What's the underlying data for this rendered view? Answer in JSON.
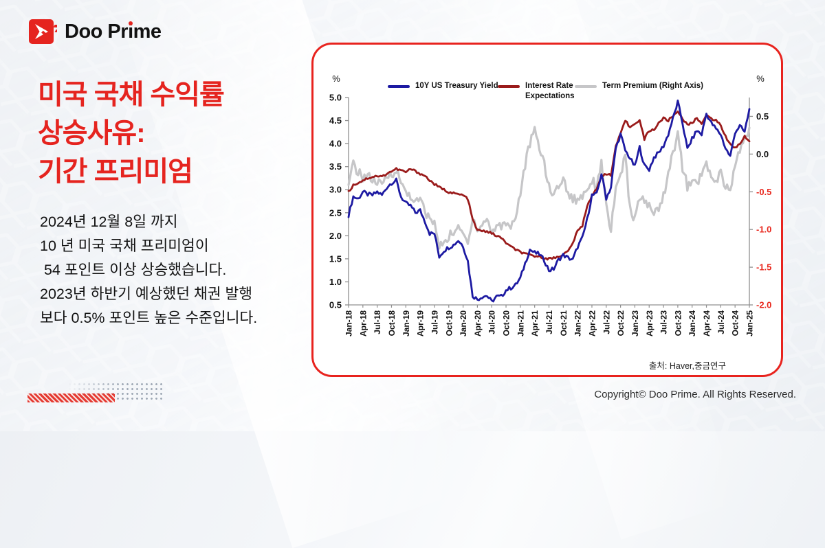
{
  "logo": {
    "brand_left": "Doo Pr",
    "brand_i": "i",
    "brand_right": "me"
  },
  "headline": {
    "lines": [
      "미국 국채 수익률",
      "상승사유:",
      "기간 프리미엄"
    ],
    "color": "#e5241f"
  },
  "body": {
    "text": "2024년 12월 8일 까지\n10 년 미국 국채 프리미엄이\n 54 포인트 이상 상승했습니다.\n2023년 하반기 예상했던 채권 발행\n보다 0.5% 포인트 높은 수준입니다."
  },
  "footer": {
    "copyright": "Copyright© Doo Prime. All Rights Reserved."
  },
  "chart_data": {
    "type": "line",
    "source": "출처:  Haver,중금연구",
    "x_start": "Jan-18",
    "x_end": "Jan-25",
    "x_labels": [
      "Jan-18",
      "Apr-18",
      "Jul-18",
      "Oct-18",
      "Jan-19",
      "Apr-19",
      "Jul-19",
      "Oct-19",
      "Jan-20",
      "Apr-20",
      "Jul-20",
      "Oct-20",
      "Jan-21",
      "Apr-21",
      "Jul-21",
      "Oct-21",
      "Jan-22",
      "Apr-22",
      "Jul-22",
      "Oct-22",
      "Jan-23",
      "Apr-23",
      "Jul-23",
      "Oct-23",
      "Jan-24",
      "Apr-24",
      "Jul-24",
      "Oct-24",
      "Jan-25"
    ],
    "left_axis": {
      "label": "%",
      "min": 0.5,
      "max": 5.0,
      "ticks": [
        5.0,
        4.5,
        4.0,
        3.5,
        3.0,
        2.5,
        2.0,
        1.5,
        1.0,
        0.5
      ],
      "tick_color": "#111111"
    },
    "right_axis": {
      "label": "%",
      "min": -2.0,
      "max": 0.75,
      "ticks": [
        0.5,
        0.0,
        -0.5,
        -1.0,
        -1.5,
        -2.0
      ],
      "tick_color": "#111111",
      "negative_tick_color": "#e8281e"
    },
    "legend_position": "top",
    "grid": false,
    "series": [
      {
        "name": "10Y US Treasury Yield",
        "color": "#1d1aa2",
        "axis": "left",
        "width": 2.8,
        "noise": 0.09,
        "values": [
          2.45,
          2.85,
          2.8,
          2.95,
          2.9,
          2.88,
          2.95,
          2.88,
          3.05,
          3.15,
          3.2,
          2.85,
          2.7,
          2.65,
          2.5,
          2.55,
          2.32,
          2.05,
          2.05,
          1.55,
          1.68,
          1.75,
          1.8,
          1.9,
          1.78,
          1.45,
          0.7,
          0.62,
          0.68,
          0.7,
          0.57,
          0.68,
          0.68,
          0.82,
          0.87,
          0.93,
          1.08,
          1.4,
          1.7,
          1.63,
          1.6,
          1.47,
          1.25,
          1.28,
          1.48,
          1.58,
          1.52,
          1.48,
          1.76,
          1.95,
          2.35,
          2.88,
          2.9,
          3.35,
          2.82,
          3.05,
          3.9,
          4.2,
          3.85,
          3.68,
          3.5,
          3.92,
          3.52,
          3.44,
          3.7,
          3.8,
          3.95,
          4.2,
          4.55,
          4.9,
          4.45,
          3.88,
          4.1,
          4.28,
          4.2,
          4.65,
          4.45,
          4.32,
          4.2,
          3.9,
          3.72,
          4.25,
          4.38,
          4.25,
          4.75
        ]
      },
      {
        "name": "Interest Rate Expectations",
        "color": "#9a1b1b",
        "axis": "left",
        "width": 2.8,
        "noise": 0.05,
        "values": [
          2.95,
          3.1,
          3.15,
          3.2,
          3.25,
          3.28,
          3.3,
          3.28,
          3.35,
          3.4,
          3.45,
          3.42,
          3.38,
          3.45,
          3.4,
          3.35,
          3.3,
          3.2,
          3.12,
          3.05,
          3.0,
          2.95,
          2.92,
          2.9,
          2.88,
          2.8,
          2.35,
          2.12,
          2.1,
          2.1,
          2.05,
          2.0,
          1.95,
          1.85,
          1.76,
          1.7,
          1.65,
          1.6,
          1.58,
          1.56,
          1.55,
          1.52,
          1.5,
          1.52,
          1.55,
          1.6,
          1.66,
          1.85,
          2.1,
          2.22,
          2.65,
          2.88,
          3.0,
          3.3,
          3.35,
          3.3,
          3.95,
          4.2,
          4.5,
          4.35,
          4.45,
          4.5,
          4.1,
          4.28,
          4.3,
          4.45,
          4.55,
          4.5,
          4.6,
          4.7,
          4.55,
          4.4,
          4.45,
          4.55,
          4.45,
          4.6,
          4.55,
          4.5,
          4.4,
          4.15,
          4.0,
          3.9,
          4.0,
          4.15,
          4.05
        ]
      },
      {
        "name": "Term Premium (Right Axis)",
        "color": "#c6c6c8",
        "axis": "right",
        "width": 3.2,
        "noise": 0.13,
        "values": [
          -0.45,
          -0.12,
          -0.25,
          -0.3,
          -0.28,
          -0.35,
          -0.38,
          -0.42,
          -0.3,
          -0.25,
          -0.22,
          -0.38,
          -0.5,
          -0.55,
          -0.65,
          -0.6,
          -0.75,
          -0.88,
          -0.9,
          -1.25,
          -1.15,
          -1.1,
          -1.02,
          -1.0,
          -1.05,
          -1.2,
          -0.82,
          -1.0,
          -0.95,
          -0.85,
          -1.05,
          -0.95,
          -0.95,
          -0.9,
          -0.95,
          -0.85,
          -0.5,
          -0.15,
          0.15,
          0.3,
          0.08,
          -0.1,
          -0.45,
          -0.55,
          -0.4,
          -0.35,
          -0.5,
          -0.6,
          -0.6,
          -0.55,
          -0.45,
          -0.35,
          -0.42,
          -0.1,
          -0.7,
          -1.0,
          -0.5,
          -0.25,
          -0.05,
          -0.75,
          -0.85,
          -0.6,
          -0.6,
          -0.7,
          -0.8,
          -0.7,
          -0.55,
          -0.25,
          0.0,
          0.33,
          -0.2,
          -0.42,
          -0.4,
          -0.35,
          -0.3,
          -0.12,
          -0.3,
          -0.4,
          -0.25,
          -0.45,
          -0.48,
          -0.15,
          0.05,
          0.18,
          0.35
        ]
      }
    ]
  }
}
